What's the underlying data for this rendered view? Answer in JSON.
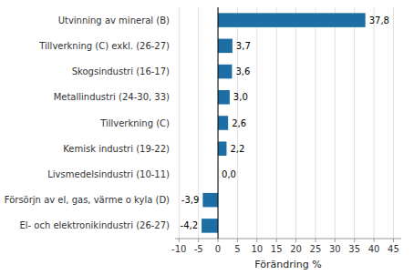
{
  "chart_data": {
    "type": "bar",
    "orientation": "horizontal",
    "categories": [
      "El- och elektronikindustri (26-27)",
      "Försörjn av el, gas, värme o kyla (D)",
      "Livsmedelsindustri (10-11)",
      "Kemisk industri (19-22)",
      "Tillverkning (C)",
      "Metallindustri (24-30, 33)",
      "Skogsindustri (16-17)",
      "Tillverkning (C) exkl. (26-27)",
      "Utvinning av mineral (B)"
    ],
    "values": [
      -4.2,
      -3.9,
      0.0,
      2.2,
      2.6,
      3.0,
      3.6,
      3.7,
      37.8
    ],
    "value_labels": [
      "-4,2",
      "-3,9",
      "0,0",
      "2,2",
      "2,6",
      "3,0",
      "3,6",
      "3,7",
      "37,8"
    ],
    "data_labels": true,
    "color": "#1c6ea4",
    "xlabel": "Förändring %",
    "xlim": [
      -11,
      47
    ],
    "xticks": [
      -10,
      -5,
      0,
      5,
      10,
      15,
      20,
      25,
      30,
      35,
      40,
      45
    ],
    "grid": true
  }
}
